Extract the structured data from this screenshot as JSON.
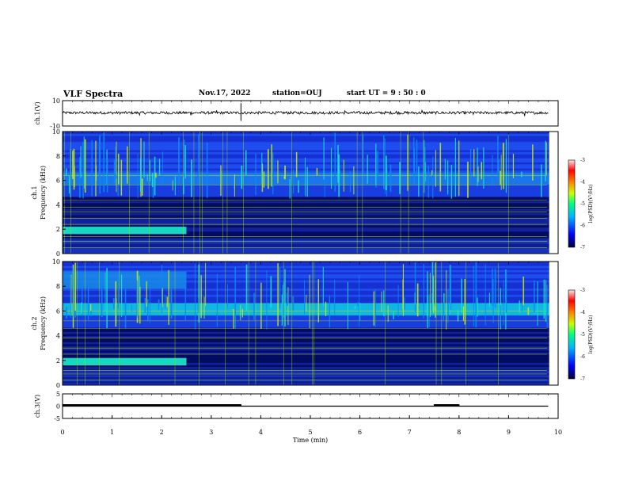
{
  "header": {
    "title": "VLF Spectra",
    "date": "Nov.17, 2022",
    "station": "station=OUJ",
    "start_ut": "start  UT =  9 : 50 : 0"
  },
  "chart_data": [
    {
      "type": "line",
      "panel": "ch1-waveform",
      "ylabel": "ch.1(V)",
      "ylim": [
        -10,
        10
      ],
      "yticks": [
        "10",
        "-10"
      ],
      "xlim": [
        0,
        10
      ],
      "series": [
        {
          "values": [
            0.5,
            0.8,
            0.2,
            -0.3,
            0.1,
            0.6,
            0.4,
            0.0,
            0.3,
            0.7,
            0.2
          ]
        }
      ],
      "x": [
        0,
        1,
        2,
        3,
        4,
        5,
        6,
        7,
        8,
        9,
        10
      ],
      "colors": {
        "line": "#000000"
      }
    },
    {
      "type": "heatmap",
      "panel": "ch1-spectrogram",
      "ylabel": "ch.1 Frequency (kHz)",
      "ylim": [
        0,
        10
      ],
      "yticks": [
        "0",
        "2",
        "4",
        "6",
        "8",
        "10"
      ],
      "xlim": [
        0,
        10
      ],
      "colorbar": {
        "label": "log(PSD)(V²/Hz)",
        "range": [
          -7,
          -3
        ],
        "ticks": [
          "-3",
          "-4",
          "-5",
          "-6",
          "-7"
        ]
      }
    },
    {
      "type": "heatmap",
      "panel": "ch2-spectrogram",
      "ylabel": "ch.2 Frequency (kHz)",
      "ylim": [
        0,
        10
      ],
      "yticks": [
        "0",
        "2",
        "4",
        "6",
        "8",
        "10"
      ],
      "xlim": [
        0,
        10
      ],
      "colorbar": {
        "label": "log(PSD)(V²/Hz)",
        "range": [
          -7,
          -3
        ],
        "ticks": [
          "-3",
          "-4",
          "-5",
          "-6",
          "-7"
        ]
      }
    },
    {
      "type": "line",
      "panel": "ch3-waveform",
      "ylabel": "ch.3(V)",
      "ylim": [
        -5,
        5
      ],
      "yticks": [
        "5",
        "0",
        "-5"
      ],
      "xlim": [
        0,
        10
      ],
      "xticks": [
        "0",
        "1",
        "2",
        "3",
        "4",
        "5",
        "6",
        "7",
        "8",
        "9",
        "10"
      ],
      "xlabel": "Time (min)",
      "series": [
        {
          "x": [
            0,
            3.6,
            3.6,
            7.5,
            7.5,
            8.0,
            8.0,
            9.8
          ],
          "values": [
            0.5,
            0.5,
            0.0,
            0.0,
            0.5,
            0.5,
            0.0,
            0.0
          ]
        }
      ]
    }
  ],
  "colors": {
    "spectrogram_low": "#000040",
    "spectrogram_mid": "#1a3dff",
    "spectrogram_high": "#19e6c8",
    "emission_line": "#c8f000",
    "background": "#ffffff"
  }
}
